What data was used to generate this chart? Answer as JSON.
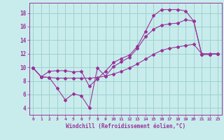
{
  "xlabel": "Windchill (Refroidissement éolien,°C)",
  "background_color": "#c8ecec",
  "line_color": "#993399",
  "grid_color": "#a0d0d0",
  "xlim": [
    -0.5,
    23.5
  ],
  "ylim": [
    3.0,
    19.5
  ],
  "xticks": [
    0,
    1,
    2,
    3,
    4,
    5,
    6,
    7,
    8,
    9,
    10,
    11,
    12,
    13,
    14,
    15,
    16,
    17,
    18,
    19,
    20,
    21,
    22,
    23
  ],
  "yticks": [
    4,
    6,
    8,
    10,
    12,
    14,
    16,
    18
  ],
  "line1_x": [
    0,
    1,
    2,
    3,
    4,
    5,
    6,
    7,
    8,
    9,
    10,
    11,
    12,
    13,
    14,
    15,
    16,
    17,
    18,
    19,
    20,
    21,
    22,
    23
  ],
  "line1_y": [
    9.9,
    8.6,
    9.4,
    9.5,
    9.5,
    9.3,
    9.4,
    7.2,
    8.3,
    9.4,
    10.7,
    11.3,
    11.8,
    13.1,
    15.3,
    17.6,
    18.5,
    18.5,
    18.5,
    18.3,
    16.8,
    11.9,
    11.9,
    12.0
  ],
  "line2_x": [
    0,
    1,
    2,
    3,
    4,
    5,
    6,
    7,
    8,
    9,
    10,
    11,
    12,
    13,
    14,
    15,
    16,
    17,
    18,
    19,
    20,
    21,
    22,
    23
  ],
  "line2_y": [
    9.9,
    8.6,
    8.5,
    6.9,
    5.2,
    6.1,
    5.8,
    4.0,
    9.9,
    8.7,
    10.1,
    10.8,
    11.5,
    12.8,
    14.5,
    15.6,
    16.2,
    16.4,
    16.5,
    17.0,
    16.8,
    11.9,
    11.9,
    12.0
  ],
  "line3_x": [
    0,
    1,
    2,
    3,
    4,
    5,
    6,
    7,
    8,
    9,
    10,
    11,
    12,
    13,
    14,
    15,
    16,
    17,
    18,
    19,
    20,
    21,
    22,
    23
  ],
  "line3_y": [
    9.9,
    8.6,
    8.5,
    8.4,
    8.4,
    8.4,
    8.4,
    8.4,
    8.5,
    8.7,
    9.0,
    9.4,
    9.9,
    10.5,
    11.2,
    11.9,
    12.5,
    12.8,
    13.0,
    13.2,
    13.4,
    12.0,
    12.0,
    12.0
  ]
}
